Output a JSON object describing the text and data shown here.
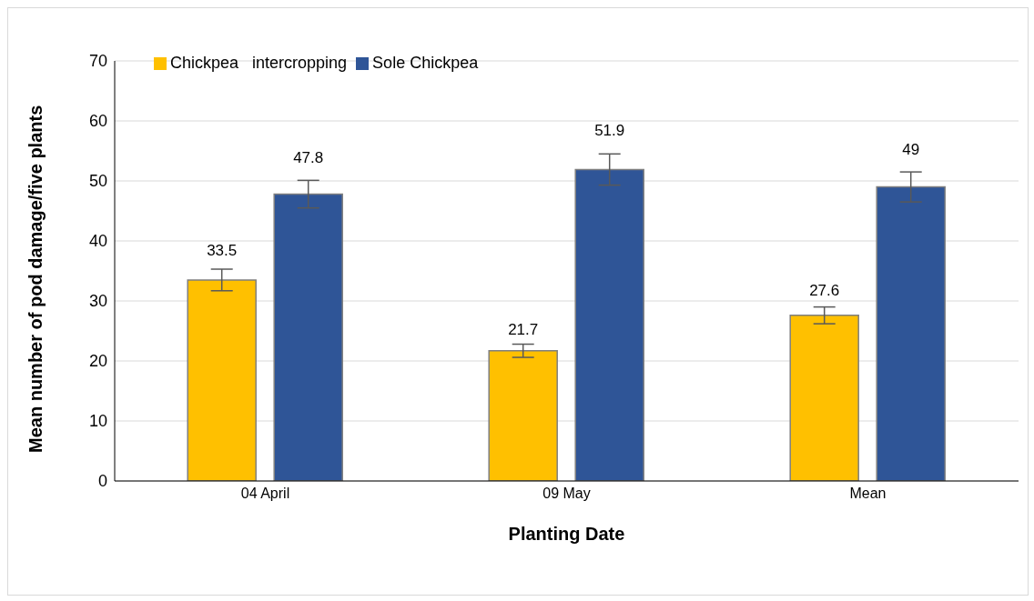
{
  "chart_data": {
    "type": "bar",
    "xlabel": "Planting Date",
    "ylabel": "Mean number of pod damage/five plants",
    "categories": [
      "04 April",
      "09 May",
      "Mean"
    ],
    "series": [
      {
        "name": "Chickpea   intercropping",
        "color": "#ffc000",
        "values": [
          33.5,
          21.7,
          27.6
        ],
        "errors": [
          1.8,
          1.1,
          1.4
        ]
      },
      {
        "name": "Sole Chickpea",
        "color": "#2f5597",
        "values": [
          47.8,
          51.9,
          49
        ],
        "errors": [
          2.3,
          2.6,
          2.5
        ]
      }
    ],
    "ylim": [
      0,
      70
    ],
    "yticks": [
      0,
      10,
      20,
      30,
      40,
      50,
      60,
      70
    ],
    "grid": "y",
    "legend": "top left",
    "data_labels": true
  }
}
